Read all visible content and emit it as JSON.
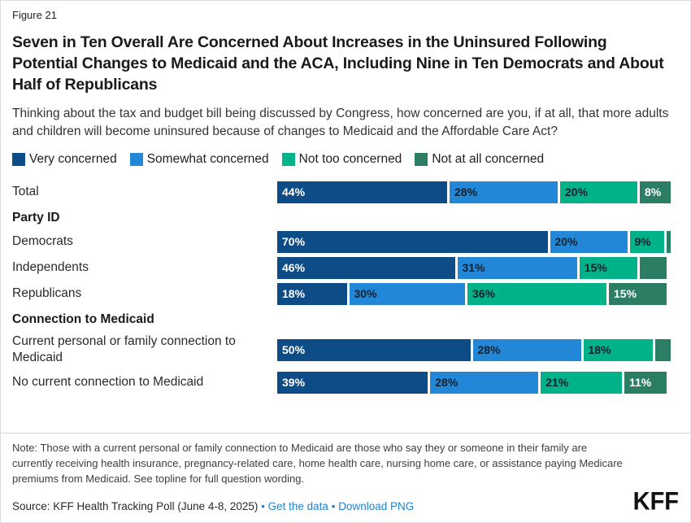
{
  "figure_label": "Figure 21",
  "title": "Seven in Ten Overall Are Concerned About Increases in the Uninsured Following Potential Changes to Medicaid and the ACA, Including Nine in Ten Democrats and About Half of Republicans",
  "subtitle": "Thinking about the tax and budget bill being discussed by Congress, how concerned are you, if at all, that more adults and children will become uninsured because of changes to Medicaid and the Affordable Care Act?",
  "legend": [
    {
      "label": "Very concerned",
      "color": "#0d4c87"
    },
    {
      "label": "Somewhat concerned",
      "color": "#2287d6"
    },
    {
      "label": "Not too concerned",
      "color": "#00b287"
    },
    {
      "label": "Not at all concerned",
      "color": "#2b7d63"
    }
  ],
  "chart_data": {
    "type": "bar",
    "orientation": "horizontal",
    "stacked": true,
    "unit": "percent",
    "xlim": [
      0,
      100
    ],
    "legend_position": "top",
    "series_names": [
      "Very concerned",
      "Somewhat concerned",
      "Not too concerned",
      "Not at all concerned"
    ],
    "label_text_colors": [
      "#ffffff",
      "#15202e",
      "#15202e",
      "#ffffff"
    ],
    "rows": [
      {
        "type": "bars",
        "label": "Total",
        "values": [
          44,
          28,
          20,
          8
        ],
        "labels": [
          "44%",
          "28%",
          "20%",
          "8%"
        ]
      },
      {
        "type": "section",
        "label": "Party ID"
      },
      {
        "type": "bars",
        "label": "Democrats",
        "values": [
          70,
          20,
          9,
          1
        ],
        "labels": [
          "70%",
          "20%",
          "9%",
          ""
        ]
      },
      {
        "type": "bars",
        "label": "Independents",
        "values": [
          46,
          31,
          15,
          7
        ],
        "labels": [
          "46%",
          "31%",
          "15%",
          ""
        ]
      },
      {
        "type": "bars",
        "label": "Republicans",
        "values": [
          18,
          30,
          36,
          15
        ],
        "labels": [
          "18%",
          "30%",
          "36%",
          "15%"
        ]
      },
      {
        "type": "section",
        "label": "Connection to Medicaid"
      },
      {
        "type": "bars",
        "label": "Current personal or family connection to Medicaid",
        "values": [
          50,
          28,
          18,
          4
        ],
        "labels": [
          "50%",
          "28%",
          "18%",
          ""
        ],
        "tall": true
      },
      {
        "type": "bars",
        "label": "No current connection to Medicaid",
        "values": [
          39,
          28,
          21,
          11
        ],
        "labels": [
          "39%",
          "28%",
          "21%",
          "11%"
        ]
      }
    ]
  },
  "note": "Note: Those with a current personal or family connection to Medicaid are those who say they or someone in their family are currently receiving health insurance, pregnancy-related care, home health care, nursing home care, or assistance paying Medicare premiums from Medicaid. See topline for full question wording.",
  "source": {
    "text": "Source: KFF Health Tracking Poll (June 4-8, 2025)",
    "sep1": " • ",
    "get_data_label": "Get the data",
    "sep2": " • ",
    "download_label": "Download PNG"
  },
  "link_color": "#1f83d4",
  "logo": "KFF"
}
